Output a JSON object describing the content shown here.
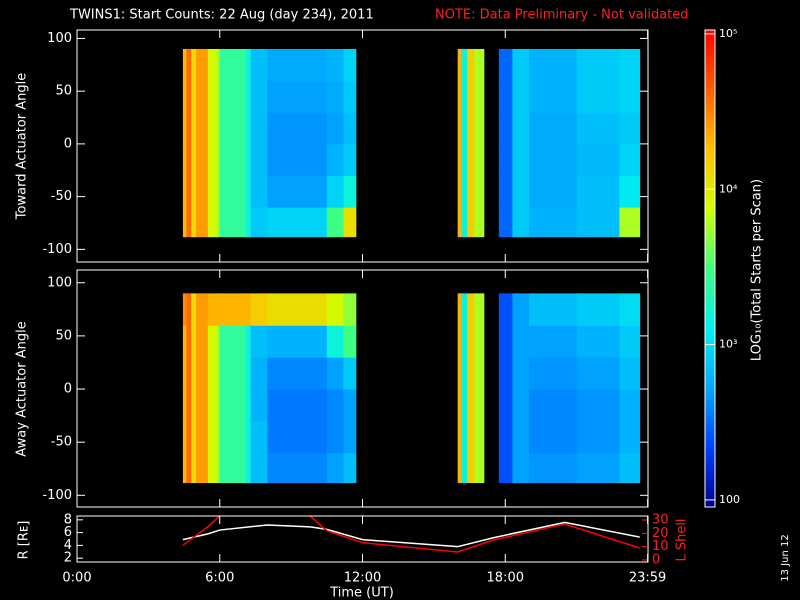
{
  "chart_data": [
    {
      "type": "heatmap",
      "title": "TWINS1: Start Counts: 22 Aug (day 234), 2011",
      "note": "NOTE: Data Preliminary - Not validated",
      "y_label": "Toward Actuator Angle",
      "xlim": [
        0,
        24
      ],
      "ylim": [
        -112,
        108
      ],
      "yticks": [
        -100,
        -50,
        0,
        50,
        100
      ],
      "x_edges": [
        4.45,
        4.6,
        4.8,
        5.0,
        5.5,
        5.9,
        6.0,
        7.1,
        7.3,
        8.0,
        10.5,
        11.2,
        11.72,
        16.0,
        16.15,
        16.4,
        16.7,
        17.1,
        17.73,
        18.3,
        19.0,
        21.0,
        22.8,
        23.65
      ],
      "y_edges": [
        -88,
        -60,
        -30,
        0,
        30,
        60,
        90
      ],
      "values": [
        [
          20000,
          20000,
          20000,
          20000,
          20000,
          20000
        ],
        [
          40000,
          40000,
          40000,
          40000,
          40000,
          40000
        ],
        [
          12000,
          12000,
          12000,
          12000,
          12000,
          12000
        ],
        [
          25000,
          25000,
          25000,
          25000,
          25000,
          25000
        ],
        [
          8000,
          8000,
          8000,
          8000,
          8000,
          8000
        ],
        [
          5000,
          5000,
          5000,
          5000,
          5000,
          5000
        ],
        [
          2500,
          2500,
          2500,
          2500,
          2500,
          2500
        ],
        [
          1500,
          1500,
          1500,
          1500,
          1500,
          1500
        ],
        [
          800,
          700,
          700,
          700,
          700,
          700
        ],
        [
          900,
          500,
          450,
          450,
          500,
          550
        ],
        [
          3000,
          900,
          600,
          500,
          550,
          600
        ],
        [
          12000,
          1500,
          800,
          700,
          800,
          900
        ],
        null,
        [
          20000,
          20000,
          20000,
          20000,
          20000,
          20000
        ],
        [
          1500,
          1500,
          1500,
          1500,
          1500,
          1500
        ],
        [
          15000,
          15000,
          15000,
          15000,
          15000,
          15000
        ],
        [
          6000,
          6000,
          6000,
          6000,
          6000,
          6000
        ],
        null,
        [
          300,
          300,
          300,
          300,
          300,
          300
        ],
        [
          800,
          800,
          800,
          800,
          800,
          800
        ],
        [
          600,
          550,
          550,
          550,
          600,
          600
        ],
        [
          700,
          700,
          650,
          700,
          800,
          800
        ],
        [
          6000,
          1200,
          900,
          800,
          900,
          900
        ]
      ]
    },
    {
      "type": "heatmap",
      "y_label": "Away Actuator Angle",
      "xlim": [
        0,
        24
      ],
      "ylim": [
        -111,
        112
      ],
      "yticks": [
        -100,
        -50,
        0,
        50,
        100
      ],
      "x_edges": [
        4.45,
        4.6,
        4.8,
        5.0,
        5.5,
        5.9,
        6.0,
        7.1,
        7.3,
        8.0,
        10.5,
        11.2,
        11.72,
        16.0,
        16.15,
        16.4,
        16.7,
        17.1,
        17.73,
        18.3,
        19.0,
        21.0,
        22.8,
        23.65
      ],
      "y_edges": [
        -88,
        -60,
        -30,
        0,
        30,
        60,
        90
      ],
      "values": [
        [
          20000,
          20000,
          20000,
          20000,
          20000,
          30000
        ],
        [
          40000,
          40000,
          40000,
          40000,
          40000,
          40000
        ],
        [
          12000,
          12000,
          12000,
          12000,
          12000,
          12000
        ],
        [
          25000,
          25000,
          25000,
          25000,
          25000,
          25000
        ],
        [
          8000,
          8000,
          8000,
          8000,
          8000,
          20000
        ],
        [
          5000,
          5000,
          5000,
          5000,
          5000,
          20000
        ],
        [
          2500,
          2500,
          2500,
          2500,
          2500,
          20000
        ],
        [
          1500,
          1500,
          1500,
          1500,
          1500,
          20000
        ],
        [
          700,
          700,
          600,
          600,
          700,
          15000
        ],
        [
          400,
          350,
          350,
          400,
          600,
          12000
        ],
        [
          500,
          400,
          400,
          500,
          1500,
          8000
        ],
        [
          700,
          500,
          500,
          800,
          3000,
          5000
        ],
        null,
        [
          20000,
          20000,
          20000,
          20000,
          20000,
          20000
        ],
        [
          1500,
          1500,
          1500,
          1500,
          1500,
          1500
        ],
        [
          15000,
          15000,
          15000,
          15000,
          15000,
          15000
        ],
        [
          6000,
          6000,
          6000,
          6000,
          6000,
          6000
        ],
        null,
        [
          250,
          250,
          250,
          250,
          250,
          250
        ],
        [
          500,
          500,
          500,
          500,
          500,
          500
        ],
        [
          450,
          400,
          400,
          450,
          500,
          700
        ],
        [
          500,
          450,
          450,
          500,
          600,
          800
        ],
        [
          700,
          600,
          600,
          700,
          800,
          1000
        ]
      ]
    },
    {
      "type": "colorbar",
      "label": "LOG₁₀(Total Starts per Scan)",
      "log": true,
      "zlim": [
        90,
        106000
      ],
      "ticks": [
        100,
        {
          "value": 1000,
          "label": "10³"
        },
        {
          "value": 10000,
          "label": "10⁴"
        },
        {
          "value": 100000,
          "label": "10⁵"
        }
      ],
      "colormap": [
        "#00008c",
        "#0040ff",
        "#00a8ff",
        "#00f0f0",
        "#40ff80",
        "#d0ff00",
        "#ffc000",
        "#ff6000",
        "#ff0000"
      ]
    },
    {
      "type": "line",
      "x_label": "Time (UT)",
      "y_label": "R [Rᴇ]",
      "y2_label": "L Shell",
      "annotation": "13 Jun 12",
      "xlim": [
        0,
        24
      ],
      "xticks": [
        {
          "value": 0,
          "label": "0:00"
        },
        {
          "value": 6,
          "label": "6:00"
        },
        {
          "value": 12,
          "label": "12:00"
        },
        {
          "value": 18,
          "label": "18:00"
        },
        {
          "value": 23.983,
          "label": "23:59"
        }
      ],
      "ylim": [
        1.4,
        8.6
      ],
      "yticks": [
        2,
        4,
        6,
        8
      ],
      "y2lim": [
        -1.5,
        33
      ],
      "y2ticks": [
        0,
        10,
        20,
        30
      ],
      "x": [
        4.45,
        5.5,
        6.0,
        8.0,
        9.8,
        10.5,
        12.0,
        16.0,
        17.5,
        20.5,
        23.65
      ],
      "series": [
        {
          "color": "#ffffff",
          "values": [
            4.9,
            5.8,
            6.4,
            7.2,
            6.9,
            6.5,
            4.9,
            3.8,
            5.2,
            7.6,
            5.3
          ]
        },
        {
          "color": "#ff0000",
          "axis": "y2",
          "values": [
            11,
            25,
            33,
            null,
            33,
            22,
            13,
            6,
            15,
            27,
            9
          ]
        }
      ]
    }
  ]
}
